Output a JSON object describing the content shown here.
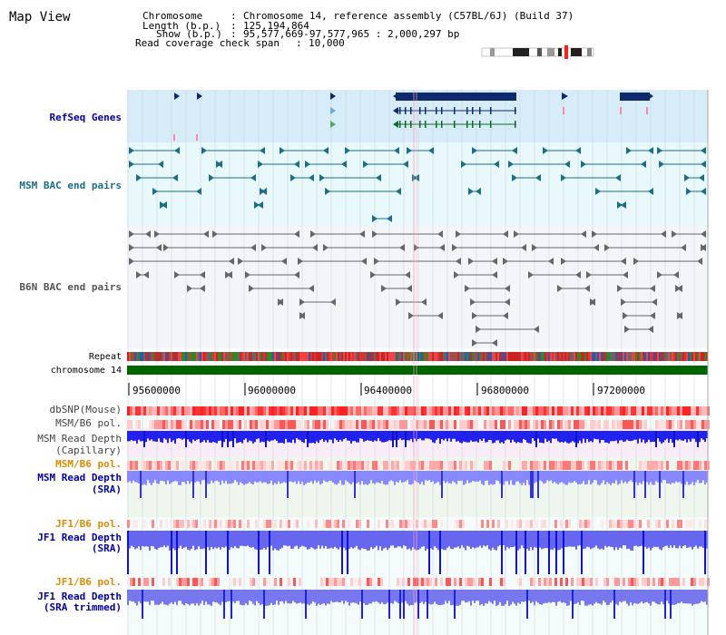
{
  "view_title": "Map View",
  "info": {
    "chromosome_label": "Chromosome",
    "chromosome_value": "Chromosome 14, reference assembly (C57BL/6J) (Build 37)",
    "length_label": "Length (b.p.)",
    "length_value": "125,194,864",
    "show_label": "Show (b.p.)",
    "show_value": "95,577,669-97,577,965 : 2,000,297 bp",
    "coverage_label": "Read coverage check span",
    "coverage_value": "10,000"
  },
  "tracks": {
    "refseq": "RefSeq Genes",
    "msm_bac": "MSM BAC end pairs",
    "b6n_bac": "B6N BAC end pairs",
    "repeat": "Repeat",
    "chromosome": "chromosome 14",
    "dbsnp": "dbSNP(Mouse)",
    "msm_b6_pol_1": "MSM/B6 pol.",
    "msm_depth_cap_1": "MSM Read Depth",
    "msm_depth_cap_2": "(Capillary)",
    "msm_b6_pol_2": "MSM/B6 pol.",
    "msm_depth_sra_1": "MSM Read Depth",
    "msm_depth_sra_2": "(SRA)",
    "jf1_b6_pol_1": "JF1/B6 pol.",
    "jf1_depth_sra_1": "JF1 Read Depth",
    "jf1_depth_sra_2": "(SRA)",
    "jf1_b6_pol_2": "JF1/B6 pol.",
    "jf1_depth_trim_1": "JF1 Read Depth",
    "jf1_depth_trim_2": "(SRA trimmed)"
  },
  "axis_ticks": [
    "95600000",
    "96000000",
    "96400000",
    "96800000",
    "97200000"
  ],
  "colors": {
    "refseq_bg": "#d6ecf8",
    "gene": "#0f2a6b",
    "msm_bac": "#1a6f86",
    "b6n_bac": "#666666",
    "chromosome_band": "#006400",
    "label_blue": "#0000aa",
    "label_teal": "#1a6f86",
    "label_gray": "#555555",
    "label_orange": "#e08a00",
    "snp_red": "#ff3333",
    "depth_blue": "#2222ee",
    "depth_light": "#7777ff"
  }
}
